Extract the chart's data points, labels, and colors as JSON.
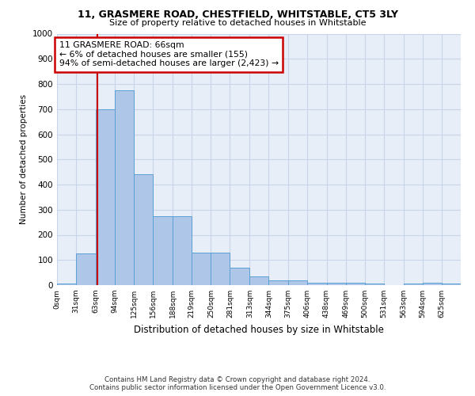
{
  "title1": "11, GRASMERE ROAD, CHESTFIELD, WHITSTABLE, CT5 3LY",
  "title2": "Size of property relative to detached houses in Whitstable",
  "xlabel": "Distribution of detached houses by size in Whitstable",
  "ylabel": "Number of detached properties",
  "bar_values": [
    5,
    127,
    700,
    775,
    440,
    275,
    275,
    130,
    130,
    70,
    35,
    20,
    20,
    10,
    10,
    10,
    5,
    0,
    5,
    10,
    5
  ],
  "bin_edges": [
    0,
    31,
    63,
    94,
    125,
    156,
    188,
    219,
    250,
    281,
    313,
    344,
    375,
    406,
    438,
    469,
    500,
    531,
    563,
    594,
    625,
    656
  ],
  "tick_labels": [
    "0sqm",
    "31sqm",
    "63sqm",
    "94sqm",
    "125sqm",
    "156sqm",
    "188sqm",
    "219sqm",
    "250sqm",
    "281sqm",
    "313sqm",
    "344sqm",
    "375sqm",
    "406sqm",
    "438sqm",
    "469sqm",
    "500sqm",
    "531sqm",
    "563sqm",
    "594sqm",
    "625sqm"
  ],
  "bar_color": "#aec6e8",
  "bar_edge_color": "#5a9fd4",
  "grid_color": "#c8d4e8",
  "background_color": "#e8eef8",
  "property_line_x": 66,
  "annotation_text_line1": "11 GRASMERE ROAD: 66sqm",
  "annotation_text_line2": "← 6% of detached houses are smaller (155)",
  "annotation_text_line3": "94% of semi-detached houses are larger (2,423) →",
  "annotation_box_color": "#ffffff",
  "annotation_box_edge": "#cc0000",
  "red_line_color": "#cc0000",
  "ylim": [
    0,
    1000
  ],
  "yticks": [
    0,
    100,
    200,
    300,
    400,
    500,
    600,
    700,
    800,
    900,
    1000
  ],
  "footer1": "Contains HM Land Registry data © Crown copyright and database right 2024.",
  "footer2": "Contains public sector information licensed under the Open Government Licence v3.0."
}
